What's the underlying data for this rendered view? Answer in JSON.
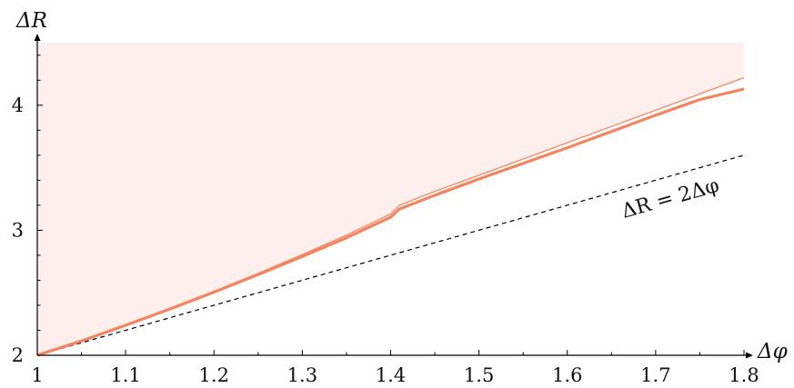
{
  "chart_data": {
    "type": "line",
    "xlabel": "Δφ",
    "ylabel": "ΔR",
    "xlim": [
      1.0,
      1.8
    ],
    "ylim": [
      2.0,
      4.5
    ],
    "xticks": [
      "1",
      "1.1",
      "1.2",
      "1.3",
      "1.4",
      "1.5",
      "1.6",
      "1.7",
      "1.8"
    ],
    "yticks": [
      "2",
      "3",
      "4"
    ],
    "grid": false,
    "colors": {
      "curve": "#f4845f",
      "region": "#fdf0ec",
      "reference": "#000000"
    },
    "series": [
      {
        "style": "thin",
        "x": [
          1.0,
          1.05,
          1.1,
          1.15,
          1.2,
          1.25,
          1.3,
          1.35,
          1.4,
          1.41,
          1.45,
          1.5,
          1.55,
          1.6,
          1.65,
          1.7,
          1.75,
          1.8
        ],
        "y": [
          2.0,
          2.12,
          2.245,
          2.375,
          2.51,
          2.655,
          2.805,
          2.96,
          3.13,
          3.2,
          3.31,
          3.44,
          3.57,
          3.7,
          3.83,
          3.96,
          4.09,
          4.22
        ]
      },
      {
        "style": "thick",
        "x": [
          1.0,
          1.05,
          1.1,
          1.15,
          1.2,
          1.25,
          1.3,
          1.35,
          1.4,
          1.41,
          1.45,
          1.5,
          1.55,
          1.6,
          1.65,
          1.7,
          1.75,
          1.8
        ],
        "y": [
          2.0,
          2.115,
          2.24,
          2.37,
          2.505,
          2.645,
          2.79,
          2.94,
          3.105,
          3.17,
          3.28,
          3.41,
          3.535,
          3.66,
          3.79,
          3.92,
          4.045,
          4.13
        ]
      },
      {
        "style": "dashed",
        "x": [
          1.0,
          1.8
        ],
        "y": [
          2.0,
          3.6
        ]
      }
    ],
    "annotations": [
      {
        "text": "ΔR = 2Δφ"
      }
    ]
  }
}
